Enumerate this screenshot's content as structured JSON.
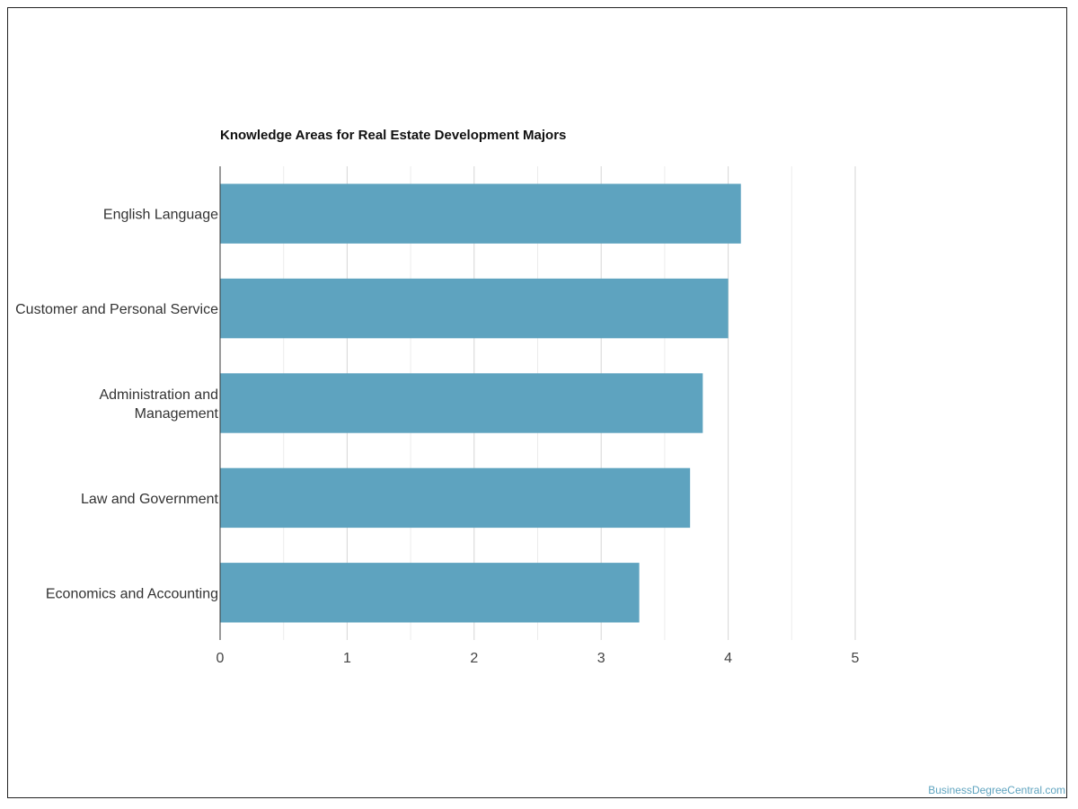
{
  "chart_data": {
    "type": "bar",
    "orientation": "horizontal",
    "title": "Knowledge Areas for Real Estate Development Majors",
    "categories": [
      "English Language",
      "Customer and Personal Service",
      "Administration and Management",
      "Law and Government",
      "Economics and Accounting"
    ],
    "values": [
      4.1,
      4.0,
      3.8,
      3.7,
      3.3
    ],
    "xlim": [
      0,
      5
    ],
    "xticks": [
      0,
      1,
      2,
      3,
      4,
      5
    ],
    "grid": true,
    "legend": "none"
  },
  "colors": {
    "bar": "#5ea3bf",
    "grid": "#d6d6d6",
    "axis": "#333333",
    "watermark": "#5ea3bf"
  },
  "watermark": "BusinessDegreeCentral.com"
}
